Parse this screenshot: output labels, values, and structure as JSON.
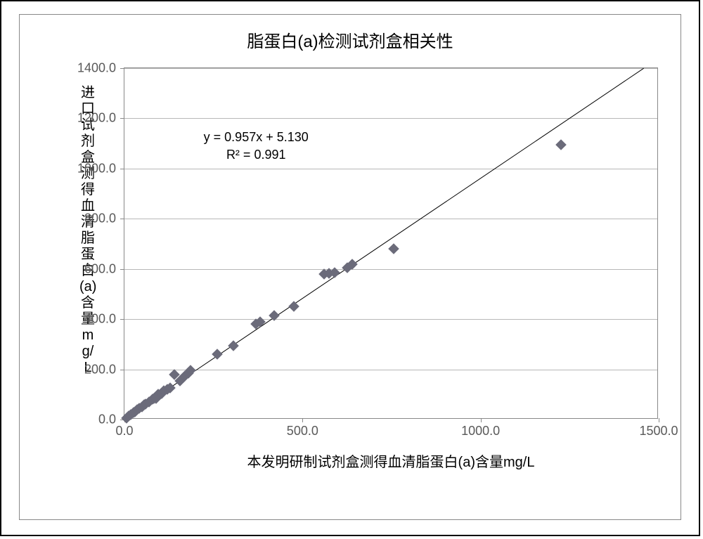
{
  "chart": {
    "type": "scatter",
    "title": "脂蛋白(a)检测试剂盒相关性",
    "title_fontsize": 24,
    "x_axis_title": "本发明研制试剂盒测得血清脂蛋白(a)含量mg/L",
    "y_axis_title": "进口试剂盒测得血清脂蛋白(a)含量mg/L",
    "axis_title_fontsize": 20,
    "tick_fontsize": 18,
    "xlim": [
      0,
      1500
    ],
    "ylim": [
      0,
      1400
    ],
    "xtick_step": 500,
    "ytick_step": 200,
    "xticks": [
      "0.0",
      "500.0",
      "1000.0",
      "1500.0"
    ],
    "yticks": [
      "0.0",
      "200.0",
      "400.0",
      "600.0",
      "800.0",
      "1000.0",
      "1200.0",
      "1400.0"
    ],
    "grid_horizontal": true,
    "grid_vertical": false,
    "grid_color": "#888888",
    "border_color": "#888888",
    "background_color": "#ffffff",
    "marker_style": "diamond",
    "marker_color": "#6b6b7a",
    "marker_size": 11,
    "trendline": {
      "slope": 0.957,
      "intercept": 5.13,
      "r_squared": 0.991,
      "color": "#000000",
      "width": 1,
      "equation_text": "y = 0.957x + 5.130",
      "r2_text": "R² = 0.991",
      "equation_x": 400,
      "equation_y": 1160
    },
    "data": [
      {
        "x": 5,
        "y": 5
      },
      {
        "x": 12,
        "y": 15
      },
      {
        "x": 18,
        "y": 20
      },
      {
        "x": 25,
        "y": 28
      },
      {
        "x": 30,
        "y": 32
      },
      {
        "x": 35,
        "y": 38
      },
      {
        "x": 42,
        "y": 45
      },
      {
        "x": 50,
        "y": 50
      },
      {
        "x": 55,
        "y": 58
      },
      {
        "x": 60,
        "y": 62
      },
      {
        "x": 70,
        "y": 70
      },
      {
        "x": 78,
        "y": 80
      },
      {
        "x": 82,
        "y": 85
      },
      {
        "x": 88,
        "y": 85
      },
      {
        "x": 95,
        "y": 100
      },
      {
        "x": 105,
        "y": 105
      },
      {
        "x": 110,
        "y": 115
      },
      {
        "x": 120,
        "y": 120
      },
      {
        "x": 128,
        "y": 125
      },
      {
        "x": 140,
        "y": 180
      },
      {
        "x": 155,
        "y": 155
      },
      {
        "x": 170,
        "y": 175
      },
      {
        "x": 180,
        "y": 185
      },
      {
        "x": 185,
        "y": 195
      },
      {
        "x": 260,
        "y": 260
      },
      {
        "x": 305,
        "y": 295
      },
      {
        "x": 370,
        "y": 380
      },
      {
        "x": 380,
        "y": 390
      },
      {
        "x": 420,
        "y": 415
      },
      {
        "x": 475,
        "y": 450
      },
      {
        "x": 560,
        "y": 580
      },
      {
        "x": 575,
        "y": 582
      },
      {
        "x": 590,
        "y": 585
      },
      {
        "x": 625,
        "y": 605
      },
      {
        "x": 640,
        "y": 618
      },
      {
        "x": 755,
        "y": 680
      },
      {
        "x": 1225,
        "y": 1095
      }
    ]
  }
}
